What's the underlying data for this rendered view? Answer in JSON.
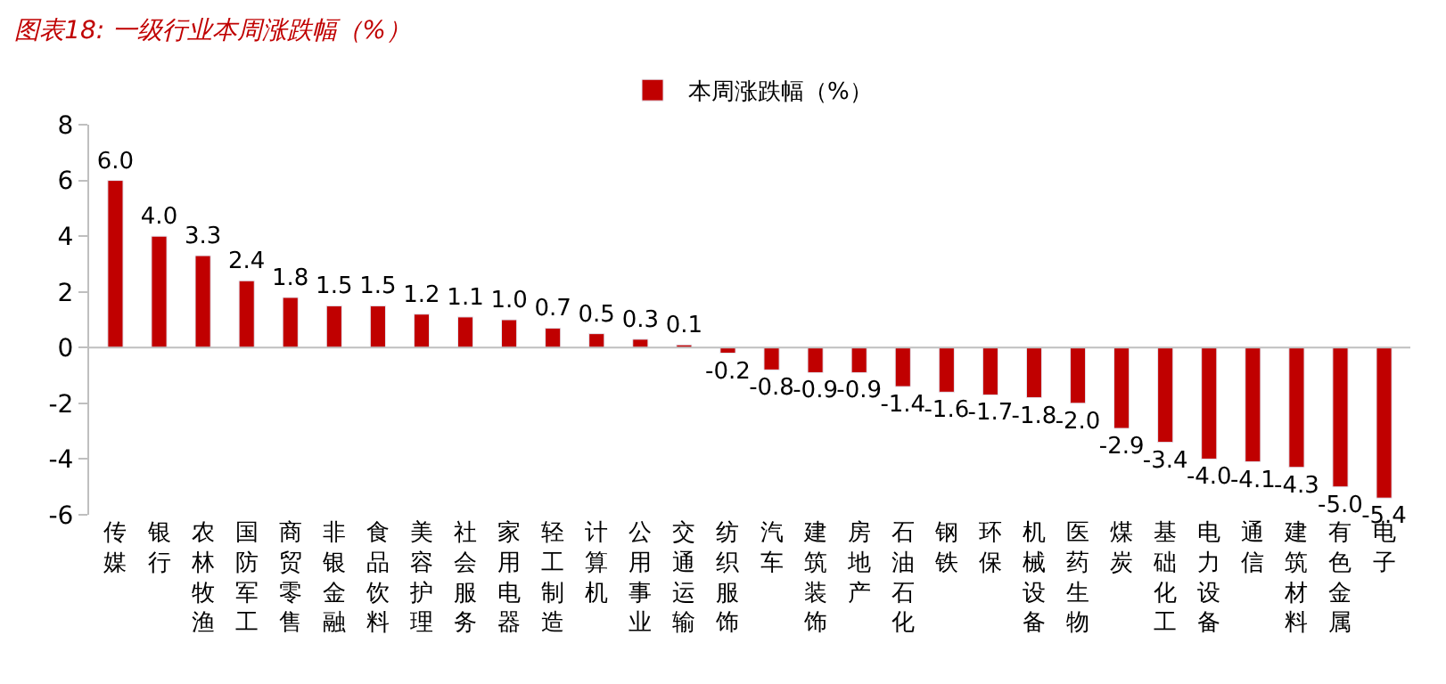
{
  "chart_data": {
    "type": "bar",
    "title": "图表18: 一级行业本周涨跌幅（%）",
    "categories": [
      "传媒",
      "银行",
      "农林牧渔",
      "国防军工",
      "商贸零售",
      "非银金融",
      "食品饮料",
      "美容护理",
      "社会服务",
      "家用电器",
      "轻工制造",
      "计算机",
      "公用事业",
      "交通运输",
      "纺织服饰",
      "汽车",
      "建筑装饰",
      "房地产",
      "石油石化",
      "钢铁",
      "环保",
      "机械设备",
      "医药生物",
      "煤炭",
      "基础化工",
      "电力设备",
      "通信",
      "建筑材料",
      "有色金属",
      "电子"
    ],
    "series": [
      {
        "name": "本周涨跌幅（%）",
        "color": "#c00000",
        "values": [
          6.0,
          4.0,
          3.3,
          2.4,
          1.8,
          1.5,
          1.5,
          1.2,
          1.1,
          1.0,
          0.7,
          0.5,
          0.3,
          0.1,
          -0.2,
          -0.8,
          -0.9,
          -0.9,
          -1.4,
          -1.6,
          -1.7,
          -1.8,
          -2.0,
          -2.9,
          -3.4,
          -4.0,
          -4.1,
          -4.3,
          -5.0,
          -5.4
        ],
        "value_labels": [
          "6.0",
          "4.0",
          "3.3",
          "2.4",
          "1.8",
          "1.5",
          "1.5",
          "1.2",
          "1.1",
          "1.0",
          "0.7",
          "0.5",
          "0.3",
          "0.1",
          "-0.2",
          "-0.8",
          "-0.9",
          "-0.9",
          "-1.4",
          "-1.6",
          "-1.7",
          "-1.8",
          "-2.0",
          "-2.9",
          "-3.4",
          "-4.0",
          "-4.1",
          "-4.3",
          "-5.0",
          "-5.4"
        ]
      }
    ],
    "ylim": [
      -6,
      8
    ],
    "yticks": [
      -6,
      -4,
      -2,
      0,
      2,
      4,
      6,
      8
    ],
    "legend": "top"
  }
}
